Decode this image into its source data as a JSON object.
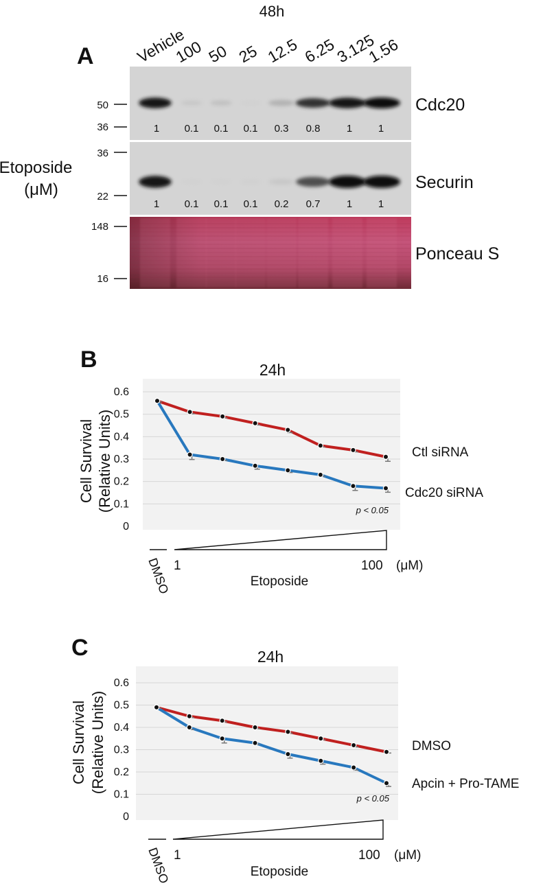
{
  "panel_a": {
    "letter": "A",
    "time_label": "48h",
    "lanes": [
      "Vehicle",
      "100",
      "50",
      "25",
      "12.5",
      "6.25",
      "3.125",
      "1.56"
    ],
    "y_label_lines": [
      "Etoposide",
      "(μM)"
    ],
    "blots": [
      {
        "name": "Cdc20",
        "markers": [
          "50",
          "36"
        ],
        "quant": [
          "1",
          "0.1",
          "0.1",
          "0.1",
          "0.3",
          "0.8",
          "1",
          "1"
        ],
        "band_intensity": [
          0.95,
          0.15,
          0.2,
          0.05,
          0.3,
          0.8,
          0.95,
          1.0
        ]
      },
      {
        "name": "Securin",
        "markers": [
          "36",
          "22"
        ],
        "quant": [
          "1",
          "0.1",
          "0.1",
          "0.1",
          "0.2",
          "0.7",
          "1",
          "1"
        ],
        "band_intensity": [
          0.95,
          0.04,
          0.04,
          0.05,
          0.15,
          0.7,
          1.0,
          1.0
        ]
      },
      {
        "name": "Ponceau S",
        "markers": [
          "148",
          "16"
        ]
      }
    ]
  },
  "chart_data": [
    {
      "panel": "B",
      "type": "line",
      "title": "24h",
      "ylabel_lines": [
        "Cell Survival",
        "(Relative Units)"
      ],
      "xlabel": "Etoposide",
      "x_tick_labels": [
        "DMSO",
        "1",
        "100",
        "(μM)"
      ],
      "x": [
        0,
        1,
        2,
        3,
        4,
        5,
        6,
        7
      ],
      "yticks": [
        "0.6",
        "0.5",
        "0.4",
        "0.3",
        "0.2",
        "0.1",
        "0"
      ],
      "ylim": [
        0,
        0.6
      ],
      "grid": true,
      "annotation": "p < 0.05",
      "series": [
        {
          "name": "Ctl siRNA",
          "color": "#c0201f",
          "values": [
            0.56,
            0.51,
            0.49,
            0.46,
            0.43,
            0.36,
            0.34,
            0.31
          ],
          "errors": [
            0.005,
            0.008,
            0.006,
            0.008,
            0.012,
            0.006,
            0.008,
            0.02
          ]
        },
        {
          "name": "Cdc20 siRNA",
          "color": "#2878be",
          "values": [
            0.56,
            0.32,
            0.3,
            0.27,
            0.25,
            0.23,
            0.18,
            0.17
          ],
          "errors": [
            0.005,
            0.022,
            0.006,
            0.015,
            0.01,
            0.006,
            0.02,
            0.018
          ]
        }
      ]
    },
    {
      "panel": "C",
      "type": "line",
      "title": "24h",
      "ylabel_lines": [
        "Cell Survival",
        "(Relative Units)"
      ],
      "xlabel": "Etoposide",
      "x_tick_labels": [
        "DMSO",
        "1",
        "100",
        "(μM)"
      ],
      "x": [
        0,
        1,
        2,
        3,
        4,
        5,
        6,
        7
      ],
      "yticks": [
        "0.6",
        "0.5",
        "0.4",
        "0.3",
        "0.2",
        "0.1",
        "0"
      ],
      "ylim": [
        0,
        0.6
      ],
      "grid": true,
      "annotation": "p < 0.05",
      "series": [
        {
          "name": "DMSO",
          "color": "#c0201f",
          "values": [
            0.49,
            0.45,
            0.43,
            0.4,
            0.38,
            0.35,
            0.32,
            0.29
          ],
          "errors": [
            0.005,
            0.006,
            0.006,
            0.006,
            0.006,
            0.006,
            0.008,
            0.005
          ]
        },
        {
          "name": "Apcin + Pro-TAME",
          "color": "#2878be",
          "values": [
            0.49,
            0.4,
            0.35,
            0.33,
            0.28,
            0.25,
            0.22,
            0.15
          ],
          "errors": [
            0.005,
            0.01,
            0.02,
            0.006,
            0.018,
            0.015,
            0.012,
            0.015
          ]
        }
      ]
    }
  ]
}
